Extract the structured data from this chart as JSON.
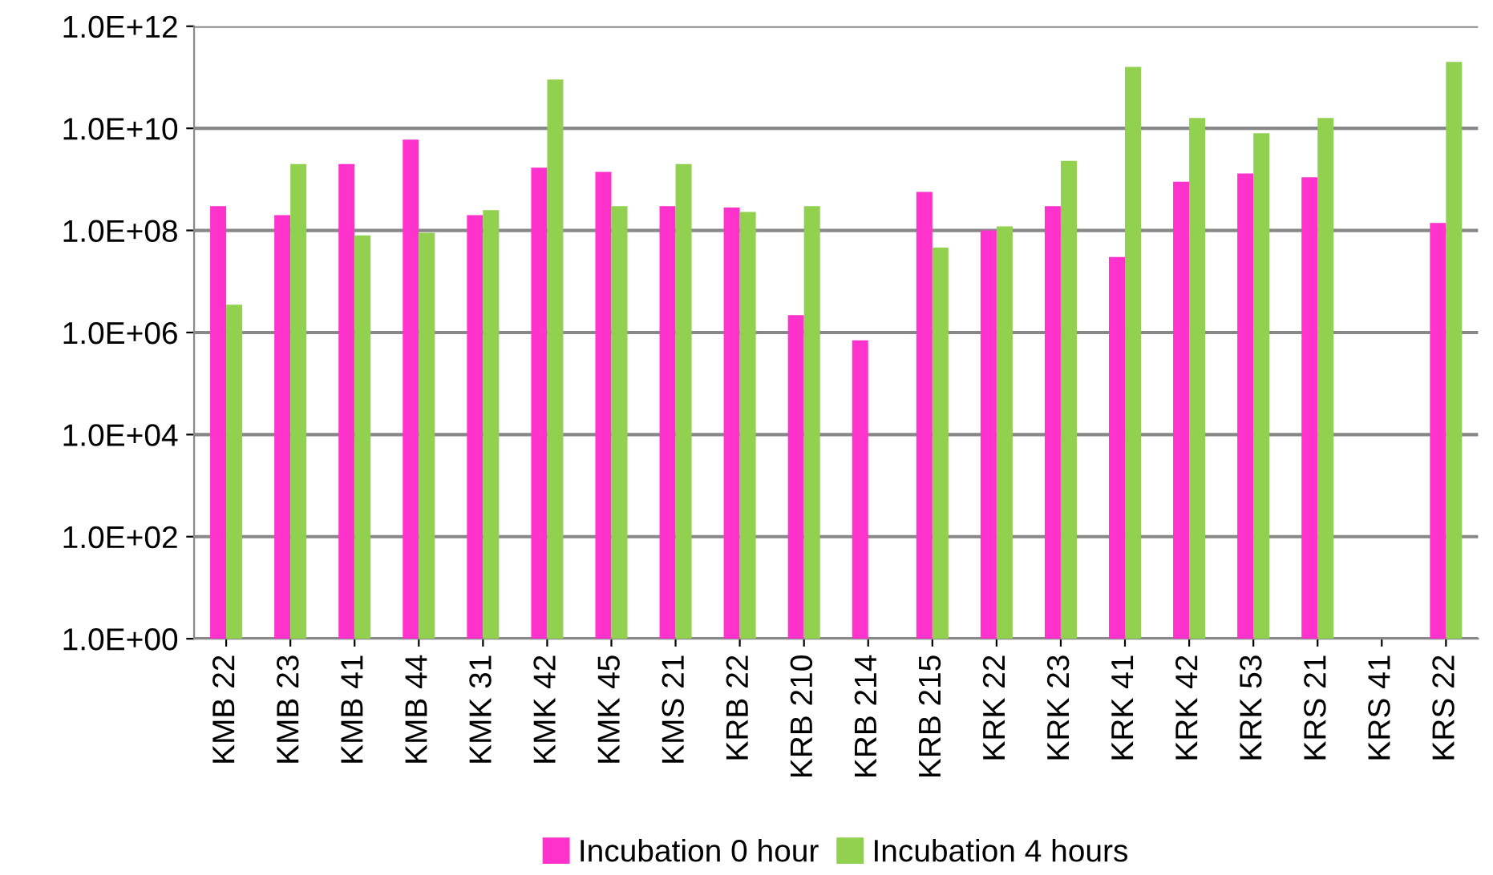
{
  "chart_data": {
    "type": "bar",
    "categories": [
      "KMB 22",
      "KMB 23",
      "KMB 41",
      "KMB 44",
      "KMK 31",
      "KMK 42",
      "KMK 45",
      "KMS 21",
      "KRB 22",
      "KRB 210",
      "KRB 214",
      "KRB 215",
      "KRK 22",
      "KRK 23",
      "KRK 41",
      "KRK 42",
      "KRK 53",
      "KRS 21",
      "KRS 41",
      "KRS 22"
    ],
    "series": [
      {
        "name": "Incubation 0 hour",
        "color": "#ff33cc",
        "values": [
          300000000.0,
          200000000.0,
          2000000000.0,
          6000000000.0,
          200000000.0,
          1700000000.0,
          1400000000.0,
          300000000.0,
          280000000.0,
          2200000.0,
          700000.0,
          570000000.0,
          100000000.0,
          300000000.0,
          30000000.0,
          900000000.0,
          1300000000.0,
          1100000000.0,
          1,
          140000000.0
        ]
      },
      {
        "name": "Incubation 4 hours",
        "color": "#92d050",
        "values": [
          3500000.0,
          2000000000.0,
          80000000.0,
          90000000.0,
          250000000.0,
          90000000000.0,
          300000000.0,
          2000000000.0,
          230000000.0,
          300000000.0,
          1,
          46000000.0,
          120000000.0,
          2300000000.0,
          160000000000.0,
          16000000000.0,
          8000000000.0,
          16000000000.0,
          1,
          200000000000.0
        ]
      }
    ],
    "log": "y",
    "ylim": [
      1,
      1000000000000.0
    ],
    "yticks": [
      {
        "value": 1,
        "label": "1.0E+00"
      },
      {
        "value": 100,
        "label": "1.0E+02"
      },
      {
        "value": 10000,
        "label": "1.0E+04"
      },
      {
        "value": 1000000,
        "label": "1.0E+06"
      },
      {
        "value": 100000000,
        "label": "1.0E+08"
      },
      {
        "value": 10000000000,
        "label": "1.0E+10"
      },
      {
        "value": 1000000000000,
        "label": "1.0E+12"
      }
    ],
    "grid": "y",
    "legend": "bottom"
  }
}
